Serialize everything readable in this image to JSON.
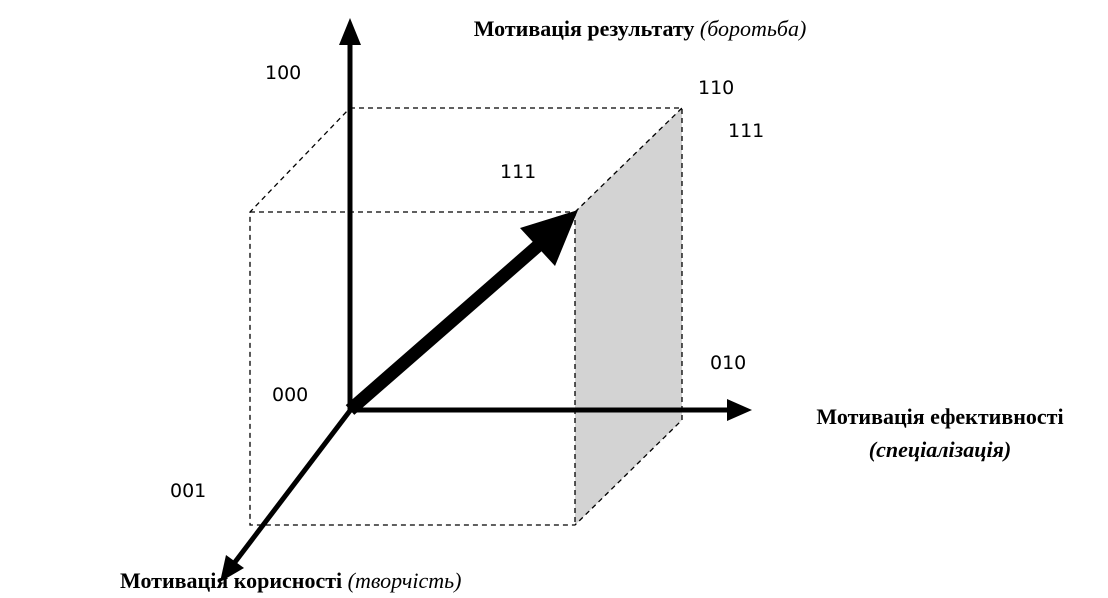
{
  "axes": {
    "result": {
      "name": "Мотивація результату",
      "qualifier": "(боротьба)"
    },
    "efficiency": {
      "name": "Мотивація ефективності",
      "qualifier": "(спеціалізація)"
    },
    "usefulness": {
      "name": "Мотивація корисності",
      "qualifier": "(творчість)"
    }
  },
  "vertices": {
    "v100": "100",
    "v110": "110",
    "v111_back": "111",
    "v111_front": "111",
    "v010": "010",
    "v000": "000",
    "v001": "001"
  }
}
